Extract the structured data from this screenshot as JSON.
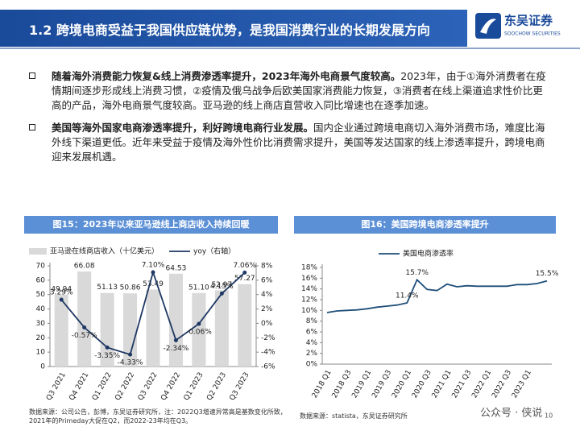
{
  "header": {
    "title": "1.2 跨境电商受益于我国供应链优势，是我国消费行业的长期发展方向",
    "logo": "东吴证券",
    "logo_sub": "SOOCHOW SECURITIES"
  },
  "bullets": [
    {
      "bold": "随着海外消费能力恢复&线上消费渗透率提升，2023年海外电商景气度较高。",
      "text": "2023年，由于①海外消费者在疫情期间逐步形成线上消费习惯，②疫情及俄乌战争后欧美国家消费能力恢复，③消费者在线上渠道追求性价比更高的产品，海外电商景气度较高。亚马逊的线上商店直营收入同比增速也在逐季加速。"
    },
    {
      "bold": "美国等海外国家电商渗透率提升，利好跨境电商行业发展。",
      "text": "国内企业通过跨境电商切入海外消费市场，难度比海外线下渠道更低。近年来受益于疫情及海外性价比消费需求提升，美国等发达国家的线上渗透率提升，跨境电商迎来发展机遇。"
    }
  ],
  "chart_data": [
    {
      "type": "bar",
      "title": "图15：2023年以来亚马逊线上商店收入持续回暖",
      "categories": [
        "Q3 2021",
        "Q4 2021",
        "Q1 2022",
        "Q2 2022",
        "Q3 2022",
        "Q4 2022",
        "Q1 2023",
        "Q2 2023",
        "Q3 2023"
      ],
      "series": [
        {
          "name": "亚马逊在线商店收入（十亿美元）",
          "color": "#d9d9d9",
          "values": [
            49.94,
            66.08,
            51.13,
            50.86,
            53.49,
            64.53,
            51.1,
            52.97,
            57.27
          ],
          "value_labels": [
            "49.94",
            "66.08",
            "51.13",
            "50.86",
            "53.49",
            "64.53",
            "51.10",
            "52.97",
            "57.27"
          ]
        },
        {
          "name": "yoy（右轴）",
          "type": "line",
          "axis": "y2",
          "color": "#1f3864",
          "values": [
            3.29,
            -0.57,
            -3.35,
            -4.33,
            7.1,
            -2.34,
            -0.06,
            4.15,
            7.06
          ],
          "value_labels": [
            "3.29%",
            "-0.57%",
            "-3.35%",
            "-4.33%",
            "7.10%",
            "-2.34%",
            "-0.06%",
            "4.15%",
            "7.06%"
          ]
        }
      ],
      "ylim": [
        0,
        70
      ],
      "yticks": [
        0,
        10,
        20,
        30,
        40,
        50,
        60,
        70
      ],
      "y2lim": [
        -6,
        8
      ],
      "y2ticks": [
        {
          "value": -6,
          "label": "-6%"
        },
        {
          "value": -4,
          "label": "-4%"
        },
        {
          "value": -2,
          "label": "-2%"
        },
        {
          "value": 0,
          "label": "0%"
        },
        {
          "value": 2,
          "label": "2%"
        },
        {
          "value": 4,
          "label": "4%"
        },
        {
          "value": 6,
          "label": "6%"
        },
        {
          "value": 8,
          "label": "8%"
        }
      ],
      "source": "数据来源：公司公告，彭博，东吴证券研究所，注：2022Q3增速异常高是基数变化所致，2021年的Primeday大促在Q2，而2022-23年均在Q3。"
    },
    {
      "type": "line",
      "title": "图16：美国跨境电商渗透率提升",
      "categories": [
        "2018 Q1",
        null,
        "2018 Q3",
        null,
        "2019 Q1",
        null,
        "2019 Q3",
        null,
        "2020 Q1",
        null,
        "2020 Q3",
        null,
        "2021 Q1",
        null,
        "2021 Q3",
        null,
        "2022 Q1",
        null,
        "2022 Q3",
        null,
        "2023 Q1",
        null,
        null
      ],
      "series": [
        {
          "name": "美国电商渗透率",
          "color": "#1f4e79",
          "values": [
            9.6,
            9.9,
            10.0,
            10.1,
            10.3,
            10.6,
            10.8,
            11.0,
            11.4,
            15.7,
            13.9,
            13.7,
            14.9,
            14.4,
            14.6,
            14.5,
            14.5,
            14.5,
            14.5,
            14.8,
            14.8,
            15.0,
            15.5
          ],
          "value_labels": [
            null,
            null,
            null,
            null,
            null,
            null,
            null,
            null,
            "11.4%",
            "15.7%",
            null,
            null,
            null,
            null,
            null,
            null,
            null,
            null,
            null,
            null,
            null,
            null,
            "15.5%"
          ]
        }
      ],
      "ylim": [
        0,
        18
      ],
      "yticks": [
        {
          "value": 0,
          "label": "0%"
        },
        {
          "value": 2,
          "label": "2%"
        },
        {
          "value": 4,
          "label": "4%"
        },
        {
          "value": 6,
          "label": "6%"
        },
        {
          "value": 8,
          "label": "8%"
        },
        {
          "value": 10,
          "label": "10%"
        },
        {
          "value": 12,
          "label": "12%"
        },
        {
          "value": 14,
          "label": "14%"
        },
        {
          "value": 16,
          "label": "16%"
        },
        {
          "value": 18,
          "label": "18%"
        }
      ],
      "source": "数据来源：statista，东吴证券研究所"
    }
  ],
  "watermark": "公众号 · 侠说",
  "page_number": "10"
}
